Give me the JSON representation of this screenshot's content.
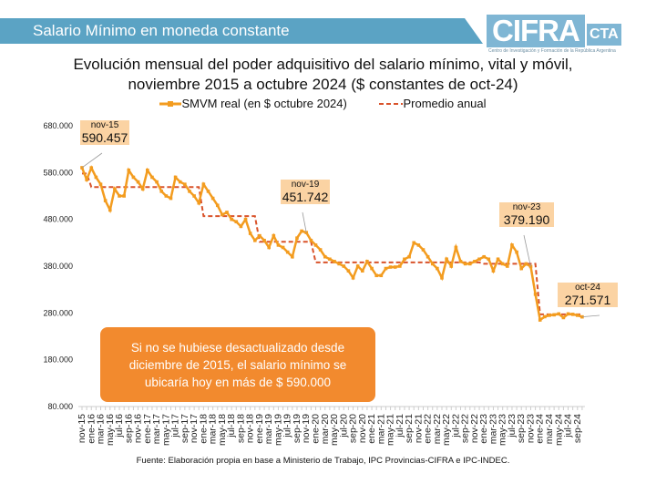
{
  "header": {
    "title": "Salario Mínimo en moneda constante",
    "logo_main": "CIFRA",
    "logo_suffix": "CTA",
    "logo_subtitle": "Centro de Investigación y Formación de la República Argentina"
  },
  "source": "Fuente: Elaboración propia en base a Ministerio de Trabajo, IPC Provincias-CIFRA e IPC-INDEC.",
  "callout": "Si no se hubiese desactualizado desde diciembre de 2015, el salario mínimo se ubicaría hoy en más de $ 590.000",
  "colors": {
    "series": "#f39c1f",
    "average": "#d9532b",
    "banner": "#5ba3c4",
    "annotation": "#fbd3a3",
    "callout": "#f28a2e"
  },
  "chart_data": {
    "type": "line",
    "title": "Evolución mensual del poder adquisitivo del salario mínimo, vital y móvil,",
    "subtitle": "noviembre 2015 a octubre 2024 ($ constantes de oct-24)",
    "xlabel": "",
    "ylabel": "",
    "ylim": [
      80000,
      680000
    ],
    "yticks": [
      "80.000",
      "180.000",
      "280.000",
      "380.000",
      "480.000",
      "580.000",
      "680.000"
    ],
    "ytick_values": [
      80000,
      180000,
      280000,
      380000,
      480000,
      580000,
      680000
    ],
    "xtick_labels": [
      "nov-15",
      "ene-16",
      "mar-16",
      "may-16",
      "jul-16",
      "sep-16",
      "nov-16",
      "ene-17",
      "mar-17",
      "may-17",
      "jul-17",
      "sep-17",
      "nov-17",
      "ene-18",
      "mar-18",
      "may-18",
      "jul-18",
      "sep-18",
      "nov-18",
      "ene-19",
      "mar-19",
      "may-19",
      "jul-19",
      "sep-19",
      "nov-19",
      "ene-20",
      "mar-20",
      "may-20",
      "jul-20",
      "sep-20",
      "nov-20",
      "ene-21",
      "mar-21",
      "may-21",
      "jul-21",
      "sep-21",
      "nov-21",
      "ene-22",
      "mar-22",
      "may-22",
      "jul-22",
      "sep-22",
      "nov-22",
      "ene-23",
      "mar-23",
      "may-23",
      "jul-23",
      "sep-23",
      "nov-23",
      "ene-24",
      "mar-24",
      "may-24",
      "jul-24",
      "sep-24"
    ],
    "legend": "top",
    "series": [
      {
        "name": "SMVM real (en $ octubre 2024)",
        "style": "solid-markers",
        "values": [
          590457,
          565000,
          590000,
          570000,
          555000,
          520000,
          500000,
          545000,
          530000,
          530000,
          585000,
          570000,
          560000,
          545000,
          585000,
          570000,
          560000,
          540000,
          530000,
          525000,
          570000,
          560000,
          555000,
          540000,
          530000,
          515000,
          555000,
          540000,
          525000,
          510000,
          490000,
          495000,
          480000,
          475000,
          465000,
          480000,
          450000,
          435000,
          445000,
          435000,
          420000,
          445000,
          425000,
          420000,
          410000,
          400000,
          440000,
          455000,
          451742,
          435000,
          425000,
          415000,
          400000,
          395000,
          390000,
          385000,
          380000,
          370000,
          355000,
          380000,
          370000,
          390000,
          375000,
          360000,
          360000,
          375000,
          378000,
          378000,
          380000,
          395000,
          400000,
          430000,
          425000,
          415000,
          400000,
          385000,
          375000,
          355000,
          395000,
          380000,
          420000,
          390000,
          385000,
          385000,
          390000,
          395000,
          400000,
          395000,
          370000,
          395000,
          385000,
          380000,
          425000,
          410000,
          375000,
          385000,
          379190,
          320000,
          265000,
          272000,
          275000,
          276000,
          278000,
          270000,
          278000,
          277000,
          275000,
          271571
        ]
      },
      {
        "name": "Promedio anual",
        "style": "dashed",
        "values": [
          578000,
          578000,
          549000,
          549000,
          549000,
          549000,
          549000,
          549000,
          549000,
          549000,
          549000,
          549000,
          549000,
          549000,
          549000,
          549000,
          549000,
          549000,
          549000,
          549000,
          549000,
          549000,
          549000,
          549000,
          549000,
          549000,
          487000,
          487000,
          487000,
          487000,
          487000,
          487000,
          487000,
          487000,
          487000,
          487000,
          487000,
          487000,
          432000,
          432000,
          432000,
          432000,
          432000,
          432000,
          432000,
          432000,
          432000,
          432000,
          432000,
          432000,
          388000,
          388000,
          388000,
          388000,
          388000,
          388000,
          388000,
          388000,
          388000,
          388000,
          388000,
          388000,
          388000,
          388000,
          388000,
          388000,
          388000,
          388000,
          388000,
          388000,
          388000,
          388000,
          388000,
          388000,
          388000,
          388000,
          388000,
          388000,
          388000,
          388000,
          388000,
          388000,
          388000,
          388000,
          388000,
          388000,
          385000,
          385000,
          385000,
          385000,
          385000,
          385000,
          385000,
          385000,
          385000,
          385000,
          385000,
          385000,
          277000,
          277000,
          277000,
          277000,
          277000,
          277000,
          277000,
          277000,
          277000,
          277000
        ]
      }
    ],
    "annotations": [
      {
        "label": "nov-15",
        "value": "590.457",
        "index": 0
      },
      {
        "label": "nov-19",
        "value": "451.742",
        "index": 48
      },
      {
        "label": "nov-23",
        "value": "379.190",
        "index": 96
      },
      {
        "label": "oct-24",
        "value": "271.571",
        "index": 107
      }
    ]
  }
}
